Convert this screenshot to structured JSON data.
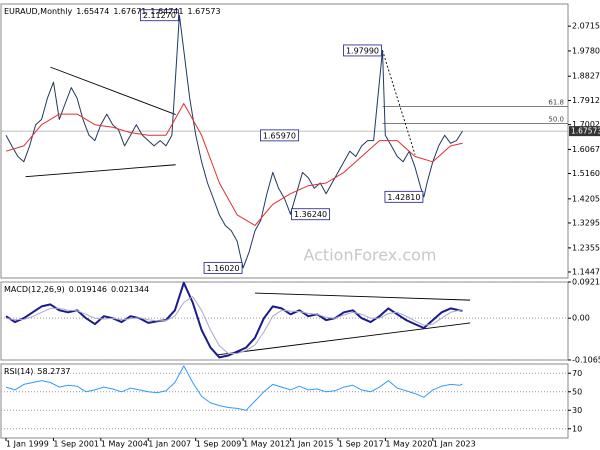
{
  "chart_data": [
    {
      "type": "line",
      "title": "EURAUD,Monthly",
      "header_values": [
        1.65474,
        1.67671,
        1.64741,
        1.67573
      ],
      "xlim": [
        1998.72,
        2030.6
      ],
      "ylim": [
        1.122,
        2.155
      ],
      "grid": false,
      "yticks": [
        {
          "value": 2.0715,
          "label": "2.07150"
        },
        {
          "value": 1.978,
          "label": "1.97800"
        },
        {
          "value": 1.88275,
          "label": "1.88275"
        },
        {
          "value": 1.79125,
          "label": "1.79125"
        },
        {
          "value": 1.70025,
          "label": "1.70025"
        },
        {
          "value": 1.60675,
          "label": "1.60675"
        },
        {
          "value": 1.516,
          "label": "1.51600"
        },
        {
          "value": 1.4205,
          "label": "1.42050"
        },
        {
          "value": 1.3295,
          "label": "1.32950"
        },
        {
          "value": 1.2355,
          "label": "1.23550"
        },
        {
          "value": 1.14475,
          "label": "1.14475"
        }
      ],
      "series": [
        {
          "color": "#1f3a5f",
          "x": [
            1999,
            1999.33,
            1999.67,
            2000,
            2000.33,
            2000.67,
            2001,
            2001.33,
            2001.67,
            2002,
            2002.33,
            2002.67,
            2003,
            2003.33,
            2003.67,
            2004,
            2004.33,
            2004.67,
            2005,
            2005.33,
            2005.67,
            2006,
            2006.33,
            2006.67,
            2007,
            2007.33,
            2007.67,
            2008,
            2008.33,
            2008.75,
            2009,
            2009.33,
            2009.67,
            2010,
            2010.33,
            2010.67,
            2011,
            2011.33,
            2011.67,
            2012,
            2012.33,
            2012.67,
            2013,
            2013.33,
            2013.67,
            2014,
            2014.33,
            2014.67,
            2015,
            2015.33,
            2015.67,
            2016,
            2016.33,
            2016.67,
            2017,
            2017.33,
            2017.67,
            2018,
            2018.33,
            2018.67,
            2019,
            2019.33,
            2019.67,
            2020.17,
            2020.33,
            2020.67,
            2021,
            2021.33,
            2021.67,
            2022,
            2022.33,
            2022.5,
            2022.67,
            2023,
            2023.33,
            2023.67,
            2024,
            2024.33,
            2024.67
          ],
          "values": [
            1.66,
            1.62,
            1.58,
            1.56,
            1.62,
            1.7,
            1.72,
            1.8,
            1.86,
            1.72,
            1.78,
            1.84,
            1.8,
            1.72,
            1.66,
            1.64,
            1.7,
            1.74,
            1.7,
            1.68,
            1.62,
            1.66,
            1.7,
            1.66,
            1.64,
            1.62,
            1.64,
            1.62,
            1.66,
            2.1127,
            1.98,
            1.8,
            1.66,
            1.56,
            1.48,
            1.42,
            1.36,
            1.32,
            1.3,
            1.26,
            1.1602,
            1.22,
            1.3,
            1.34,
            1.44,
            1.52,
            1.46,
            1.42,
            1.3624,
            1.44,
            1.52,
            1.5,
            1.46,
            1.48,
            1.44,
            1.48,
            1.52,
            1.56,
            1.6,
            1.58,
            1.62,
            1.64,
            1.64,
            1.9799,
            1.66,
            1.62,
            1.58,
            1.56,
            1.6,
            1.54,
            1.46,
            1.4281,
            1.48,
            1.56,
            1.62,
            1.66,
            1.63,
            1.64,
            1.67573
          ]
        },
        {
          "color": "#e03030",
          "x": [
            1999,
            2000,
            2001,
            2002,
            2003,
            2004,
            2005,
            2006,
            2007,
            2008,
            2009,
            2010,
            2011,
            2012,
            2013,
            2014,
            2015,
            2016,
            2017,
            2018,
            2019,
            2020,
            2021,
            2022,
            2023,
            2024,
            2024.67
          ],
          "values": [
            1.6,
            1.62,
            1.7,
            1.74,
            1.74,
            1.7,
            1.69,
            1.67,
            1.66,
            1.66,
            1.78,
            1.66,
            1.48,
            1.36,
            1.32,
            1.4,
            1.44,
            1.47,
            1.48,
            1.52,
            1.58,
            1.64,
            1.64,
            1.58,
            1.56,
            1.62,
            1.63
          ]
        }
      ],
      "annotations": [
        {
          "label": "2.11270",
          "value": 2.1127,
          "x": 2008.75,
          "align": "left"
        },
        {
          "label": "1.97990",
          "value": 1.9799,
          "x": 2020.17,
          "align": "left"
        },
        {
          "label": "1.65970",
          "value": 1.6597,
          "x": 2015.5,
          "align": "left"
        },
        {
          "label": "1.36240",
          "value": 1.3624,
          "x": 2015.0,
          "align": "right"
        },
        {
          "label": "1.42810",
          "value": 1.4281,
          "x": 2022.5,
          "align": "left"
        },
        {
          "label": "1.16020",
          "value": 1.1602,
          "x": 2012.33,
          "align": "left"
        }
      ],
      "trendlines": [
        {
          "x": [
            2001.5,
            2008.54
          ],
          "y": [
            1.917,
            1.738
          ],
          "dashed": false
        },
        {
          "x": [
            2000.1,
            2008.54
          ],
          "y": [
            1.504,
            1.549
          ],
          "dashed": false
        },
        {
          "x": [
            2020.17,
            2022.0
          ],
          "y": [
            1.9799,
            1.587
          ],
          "dashed": true
        }
      ],
      "fib_levels": [
        {
          "name": "61.8",
          "price": 1.7691,
          "start": 2020.17
        },
        {
          "name": "50.0",
          "price": 1.704,
          "start": 2020.17
        }
      ],
      "last": 1.67573,
      "watermark": "ActionForex.com"
    },
    {
      "type": "line",
      "title": "MACD(12,26,9)",
      "header_values": [
        0.019146,
        0.021344
      ],
      "xlim": [
        1998.72,
        2030.6
      ],
      "ylim": [
        -0.106503,
        0.092158
      ],
      "grid": true,
      "yticks": [
        0.092158,
        {
          "value": 0,
          "label": "0.00"
        },
        -0.106503
      ],
      "series": [
        {
          "color": "#1a1a8c",
          "x": [
            1999,
            1999.5,
            2000,
            2000.5,
            2001,
            2001.5,
            2002,
            2002.5,
            2003,
            2003.5,
            2004,
            2004.5,
            2005,
            2005.5,
            2006,
            2006.5,
            2007,
            2007.5,
            2008,
            2008.5,
            2009,
            2009.5,
            2010,
            2010.5,
            2011,
            2011.5,
            2012,
            2012.5,
            2013,
            2013.5,
            2014,
            2014.5,
            2015,
            2015.5,
            2016,
            2016.5,
            2017,
            2017.5,
            2018,
            2018.5,
            2019,
            2019.5,
            2020,
            2020.5,
            2021,
            2021.5,
            2022,
            2022.5,
            2023,
            2023.5,
            2024,
            2024.5,
            2024.67
          ],
          "values": [
            0.005,
            -0.01,
            0.0,
            0.015,
            0.03,
            0.035,
            0.02,
            0.015,
            0.02,
            0.0,
            -0.015,
            0.005,
            0.0,
            -0.01,
            0.005,
            0.0,
            -0.012,
            -0.008,
            -0.005,
            0.02,
            0.09,
            0.04,
            -0.03,
            -0.075,
            -0.1,
            -0.095,
            -0.085,
            -0.075,
            -0.05,
            0.0,
            0.03,
            0.025,
            0.01,
            0.02,
            0.005,
            0.01,
            -0.005,
            0.0,
            0.015,
            0.02,
            0.0,
            -0.01,
            0.005,
            0.025,
            0.01,
            -0.005,
            -0.015,
            -0.025,
            -0.005,
            0.015,
            0.025,
            0.02,
            0.019146
          ]
        },
        {
          "color": "#a8a8cc",
          "x": [
            1999,
            1999.5,
            2000,
            2000.5,
            2001,
            2001.5,
            2002,
            2002.5,
            2003,
            2003.5,
            2004,
            2004.5,
            2005,
            2005.5,
            2006,
            2006.5,
            2007,
            2007.5,
            2008,
            2008.5,
            2009,
            2009.5,
            2010,
            2010.5,
            2011,
            2011.5,
            2012,
            2012.5,
            2013,
            2013.5,
            2014,
            2014.5,
            2015,
            2015.5,
            2016,
            2016.5,
            2017,
            2017.5,
            2018,
            2018.5,
            2019,
            2019.5,
            2020,
            2020.5,
            2021,
            2021.5,
            2022,
            2022.5,
            2023,
            2023.5,
            2024,
            2024.5,
            2024.67
          ],
          "values": [
            0.0,
            -0.004,
            -0.003,
            0.004,
            0.015,
            0.025,
            0.025,
            0.02,
            0.019,
            0.01,
            0.0,
            -0.002,
            0.0,
            -0.004,
            -0.001,
            0.001,
            -0.004,
            -0.007,
            -0.006,
            0.005,
            0.04,
            0.055,
            0.02,
            -0.03,
            -0.07,
            -0.09,
            -0.09,
            -0.082,
            -0.068,
            -0.035,
            0.005,
            0.02,
            0.018,
            0.017,
            0.012,
            0.01,
            0.002,
            0.0,
            0.008,
            0.015,
            0.01,
            0.0,
            0.0,
            0.012,
            0.015,
            0.005,
            -0.007,
            -0.018,
            -0.015,
            0.0,
            0.015,
            0.02,
            0.021344
          ]
        }
      ],
      "trendlines": [
        {
          "x": [
            2013.0,
            2025.1
          ],
          "y": [
            0.064,
            0.046
          ],
          "dashed": false
        },
        {
          "x": [
            2010.8,
            2025.1
          ],
          "y": [
            -0.094,
            -0.012
          ],
          "dashed": false
        }
      ]
    },
    {
      "type": "line",
      "title": "RSI(14)",
      "header_values": [
        58.2737
      ],
      "xlim": [
        1998.72,
        2030.6
      ],
      "ylim": [
        0,
        80
      ],
      "grid": true,
      "yticks": [
        70,
        50,
        30,
        10
      ],
      "xticks": [
        {
          "value": 1999.0,
          "label": "1 Jan 1999"
        },
        {
          "value": 2001.667,
          "label": "1 Sep 2001"
        },
        {
          "value": 2004.333,
          "label": "1 May 2004"
        },
        {
          "value": 2007.0,
          "label": "1 Jan 2007"
        },
        {
          "value": 2009.667,
          "label": "1 Sep 2009"
        },
        {
          "value": 2012.333,
          "label": "1 May 2012"
        },
        {
          "value": 2015.0,
          "label": "1 Jan 2015"
        },
        {
          "value": 2017.667,
          "label": "1 Sep 2017"
        },
        {
          "value": 2020.333,
          "label": "1 May 2020"
        },
        {
          "value": 2023.0,
          "label": "1 Jan 2023"
        }
      ],
      "series": [
        {
          "color": "#3399ff",
          "x": [
            1999,
            1999.5,
            2000,
            2000.5,
            2001,
            2001.5,
            2002,
            2002.5,
            2003,
            2003.5,
            2004,
            2004.5,
            2005,
            2005.5,
            2006,
            2006.5,
            2007,
            2007.5,
            2008,
            2008.5,
            2009,
            2009.5,
            2010,
            2010.5,
            2011,
            2011.5,
            2012,
            2012.5,
            2013,
            2013.5,
            2014,
            2014.5,
            2015,
            2015.5,
            2016,
            2016.5,
            2017,
            2017.5,
            2018,
            2018.5,
            2019,
            2019.5,
            2020,
            2020.5,
            2021,
            2021.5,
            2022,
            2022.5,
            2023,
            2023.5,
            2024,
            2024.5,
            2024.67
          ],
          "values": [
            55,
            52,
            58,
            60,
            62,
            60,
            55,
            57,
            56,
            50,
            52,
            55,
            53,
            50,
            54,
            52,
            50,
            49,
            51,
            60,
            78,
            60,
            45,
            38,
            35,
            33,
            32,
            30,
            40,
            50,
            58,
            55,
            52,
            56,
            52,
            53,
            50,
            51,
            55,
            57,
            52,
            50,
            55,
            62,
            54,
            51,
            48,
            44,
            52,
            56,
            58,
            57,
            58.2737
          ]
        }
      ]
    }
  ]
}
